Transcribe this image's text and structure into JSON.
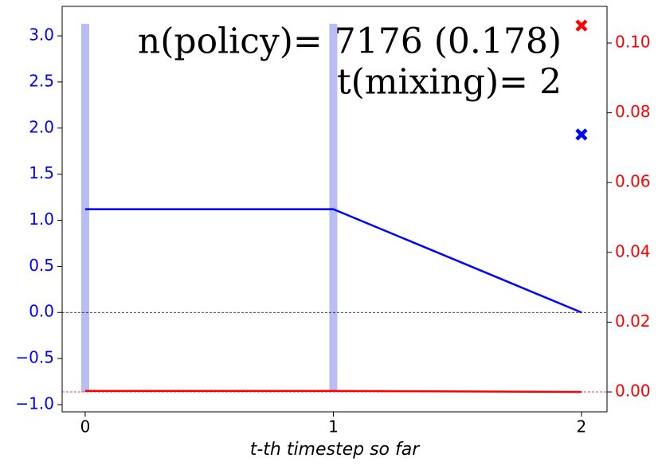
{
  "chart_data": {
    "type": "line",
    "annotations": [
      "n(policy)= 7176 (0.178)",
      "t(mixing)= 2"
    ],
    "xlabel": "t-th timestep so far",
    "x": [
      0,
      1,
      2
    ],
    "xlim": [
      -0.093,
      2.103
    ],
    "xticks": [
      0,
      1,
      2
    ],
    "ylim": [
      -1.078,
      3.32
    ],
    "yticks": [
      {
        "value": -1.0,
        "label": "−1.0"
      },
      {
        "value": -0.5,
        "label": "−0.5"
      },
      {
        "value": 0.0,
        "label": "0.0"
      },
      {
        "value": 0.5,
        "label": "0.5"
      },
      {
        "value": 1.0,
        "label": "1.0"
      },
      {
        "value": 1.5,
        "label": "1.5"
      },
      {
        "value": 2.0,
        "label": "2.0"
      },
      {
        "value": 2.5,
        "label": "2.5"
      },
      {
        "value": 3.0,
        "label": "3.0"
      }
    ],
    "y_color": "#0000ff",
    "y2lim": [
      -0.0057,
      0.1105
    ],
    "y2ticks": [
      {
        "value": 0.0,
        "label": "0.00"
      },
      {
        "value": 0.02,
        "label": "0.02"
      },
      {
        "value": 0.04,
        "label": "0.04"
      },
      {
        "value": 0.06,
        "label": "0.06"
      },
      {
        "value": 0.08,
        "label": "0.08"
      },
      {
        "value": 0.1,
        "label": "0.10"
      }
    ],
    "y2_color": "#ff0000",
    "hlines": [
      {
        "value": 0,
        "axis": "y",
        "color": "#000000"
      },
      {
        "value": 0,
        "axis": "y2",
        "color": "#ff0000"
      }
    ],
    "bars": {
      "x": [
        0,
        1
      ],
      "values": [
        0.1055,
        0.1055
      ],
      "axis": "y2",
      "color": "#b8bdf4"
    },
    "series": [
      {
        "color": "#0000ff",
        "values": [
          1.12,
          1.12,
          0.0
        ],
        "axis": "y"
      },
      {
        "color": "#ff0000",
        "values": [
          0.0003,
          0.0003,
          0.0
        ],
        "axis": "y2"
      }
    ],
    "markers": [
      {
        "x": 2,
        "value": 1.93,
        "axis": "y",
        "color": "#0000ff"
      },
      {
        "x": 2,
        "value": 0.105,
        "axis": "y2",
        "color": "#ff0000"
      }
    ]
  }
}
